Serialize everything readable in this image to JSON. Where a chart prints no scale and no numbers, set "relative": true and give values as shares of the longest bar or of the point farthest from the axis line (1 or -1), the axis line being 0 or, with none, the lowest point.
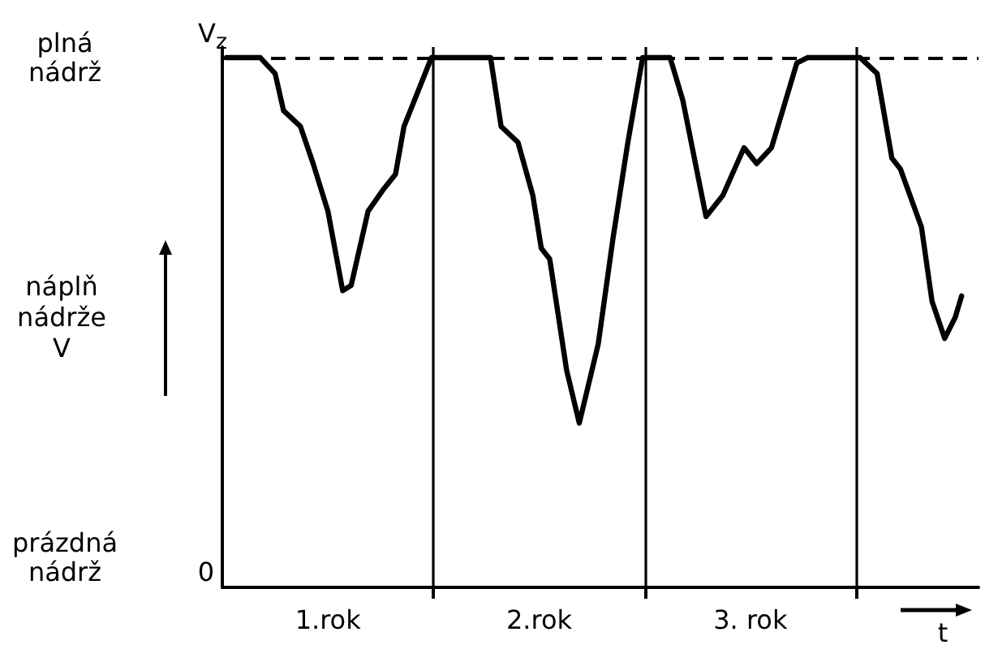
{
  "chart_data": {
    "type": "line",
    "xlabel": "t",
    "ylabel": "náplň nádrže V",
    "annotations": [
      "plná nádrž",
      "V$_{z}$",
      "prázdná nádrž",
      "0"
    ],
    "relative": true,
    "x": [
      0.02,
      0.18,
      0.25,
      0.29,
      0.37,
      0.43,
      0.5,
      0.57,
      0.61,
      0.69,
      0.76,
      0.82,
      0.86,
      0.94,
      0.99,
      1.27,
      1.32,
      1.4,
      1.47,
      1.51,
      1.55,
      1.63,
      1.69,
      1.78,
      1.85,
      1.92,
      1.99,
      2.12,
      2.18,
      2.29,
      2.37,
      2.47,
      2.53,
      2.6,
      2.72,
      2.77,
      3.02,
      3.1,
      3.17,
      3.21,
      3.31,
      3.36,
      3.42,
      3.47,
      3.5
    ],
    "series": [
      {
        "color": "#000000",
        "values": [
          1.0,
          1.0,
          0.97,
          0.9,
          0.87,
          0.8,
          0.71,
          0.56,
          0.57,
          0.71,
          0.75,
          0.78,
          0.87,
          0.95,
          1.0,
          1.0,
          0.87,
          0.84,
          0.74,
          0.64,
          0.62,
          0.41,
          0.31,
          0.46,
          0.66,
          0.84,
          1.0,
          1.0,
          0.92,
          0.7,
          0.74,
          0.83,
          0.8,
          0.83,
          0.99,
          1.0,
          1.0,
          0.97,
          0.81,
          0.79,
          0.68,
          0.54,
          0.47,
          0.51,
          0.55
        ]
      }
    ],
    "xlim": [
      0,
      3.58
    ],
    "xticks": [
      {
        "value": 1,
        "label": null
      },
      {
        "value": 2,
        "label": null
      },
      {
        "value": 3,
        "label": null
      },
      {
        "value": 0.5,
        "label": "1.rok"
      },
      {
        "value": 1.5,
        "label": "2.rok"
      },
      {
        "value": 2.5,
        "label": "3. rok"
      }
    ],
    "ref_lines": [
      {
        "axis": "x",
        "value": 1,
        "label": null,
        "color": "#000000",
        "line_style": "solid"
      },
      {
        "axis": "x",
        "value": 2,
        "label": null,
        "color": "#000000",
        "line_style": "solid"
      },
      {
        "axis": "x",
        "value": 3,
        "label": null,
        "color": "#000000",
        "line_style": "solid"
      },
      {
        "axis": "y",
        "value": 1,
        "label": null,
        "color": "#000000",
        "line_style": "dashed"
      }
    ],
    "grid": false,
    "marker": "none",
    "line_style": "solid"
  }
}
